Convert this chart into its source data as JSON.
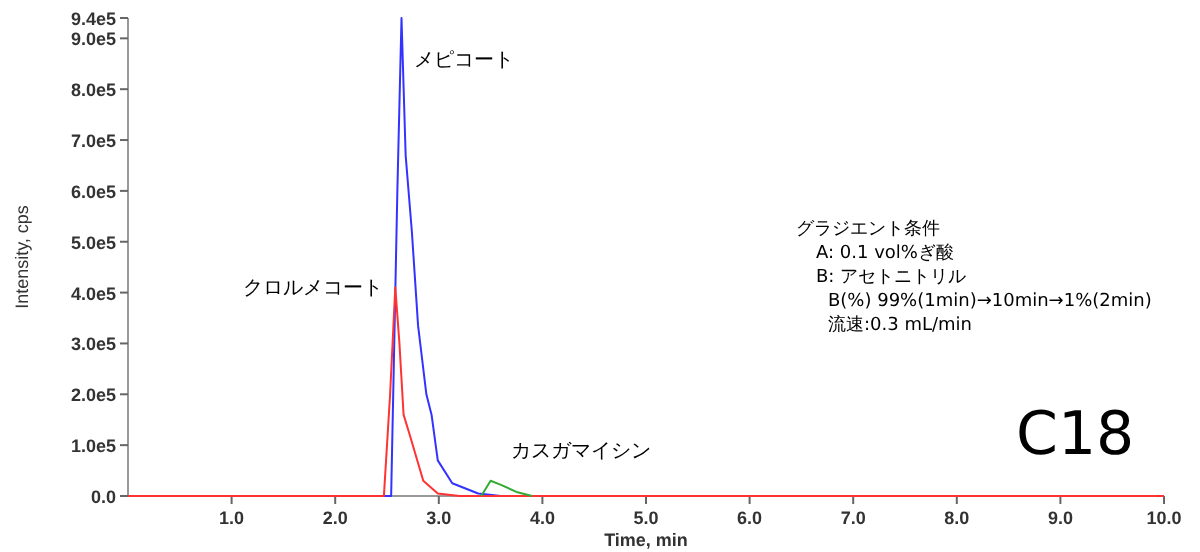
{
  "chart_data": {
    "type": "line",
    "xlabel": "Time, min",
    "ylabel": "Intensity, cps",
    "xlim": [
      0,
      10
    ],
    "ylim": [
      0,
      940000
    ],
    "xticks": [
      {
        "value": 1,
        "label": "1.0"
      },
      {
        "value": 2,
        "label": "2.0"
      },
      {
        "value": 3,
        "label": "3.0"
      },
      {
        "value": 4,
        "label": "4.0"
      },
      {
        "value": 5,
        "label": "5.0"
      },
      {
        "value": 6,
        "label": "6.0"
      },
      {
        "value": 7,
        "label": "7.0"
      },
      {
        "value": 8,
        "label": "8.0"
      },
      {
        "value": 9,
        "label": "9.0"
      },
      {
        "value": 10,
        "label": "10.0"
      }
    ],
    "yticks": [
      {
        "value": 0,
        "label": "0.0"
      },
      {
        "value": 100000,
        "label": "1.0e5"
      },
      {
        "value": 200000,
        "label": "2.0e5"
      },
      {
        "value": 300000,
        "label": "3.0e5"
      },
      {
        "value": 400000,
        "label": "4.0e5"
      },
      {
        "value": 500000,
        "label": "5.0e5"
      },
      {
        "value": 600000,
        "label": "6.0e5"
      },
      {
        "value": 700000,
        "label": "7.0e5"
      },
      {
        "value": 800000,
        "label": "8.0e5"
      },
      {
        "value": 900000,
        "label": "9.0e5"
      },
      {
        "value": 940000,
        "label": "9.4e5"
      }
    ],
    "series": [
      {
        "name": "メピコート",
        "color": "#3333ff",
        "x": [
          0,
          2.54,
          2.6,
          2.64,
          2.68,
          2.74,
          2.8,
          2.88,
          2.93,
          2.99,
          3.13,
          3.38,
          3.6,
          10
        ],
        "values": [
          0,
          0,
          600000,
          940000,
          670000,
          520000,
          335000,
          200000,
          160000,
          70000,
          25000,
          5000,
          0,
          0
        ]
      },
      {
        "name": "クロルメコート",
        "color": "#ff3333",
        "x": [
          0,
          2.47,
          2.53,
          2.58,
          2.62,
          2.66,
          2.72,
          2.85,
          2.99,
          3.2,
          10
        ],
        "values": [
          0,
          0,
          200000,
          410000,
          300000,
          160000,
          120000,
          30000,
          5000,
          0,
          0
        ]
      },
      {
        "name": "カスガマイシン",
        "color": "#33aa33",
        "x": [
          3.41,
          3.5,
          3.6,
          3.75,
          3.9
        ],
        "values": [
          0,
          30000,
          22000,
          8000,
          0
        ]
      }
    ],
    "annotations": [
      "グラジエント条件",
      "A: 0.1 vol%ぎ酸",
      "B: アセトニトリル",
      "B(%) 99%(1min)→10min→1%(2min)",
      "流速:0.3 mL/min",
      "C18"
    ]
  }
}
